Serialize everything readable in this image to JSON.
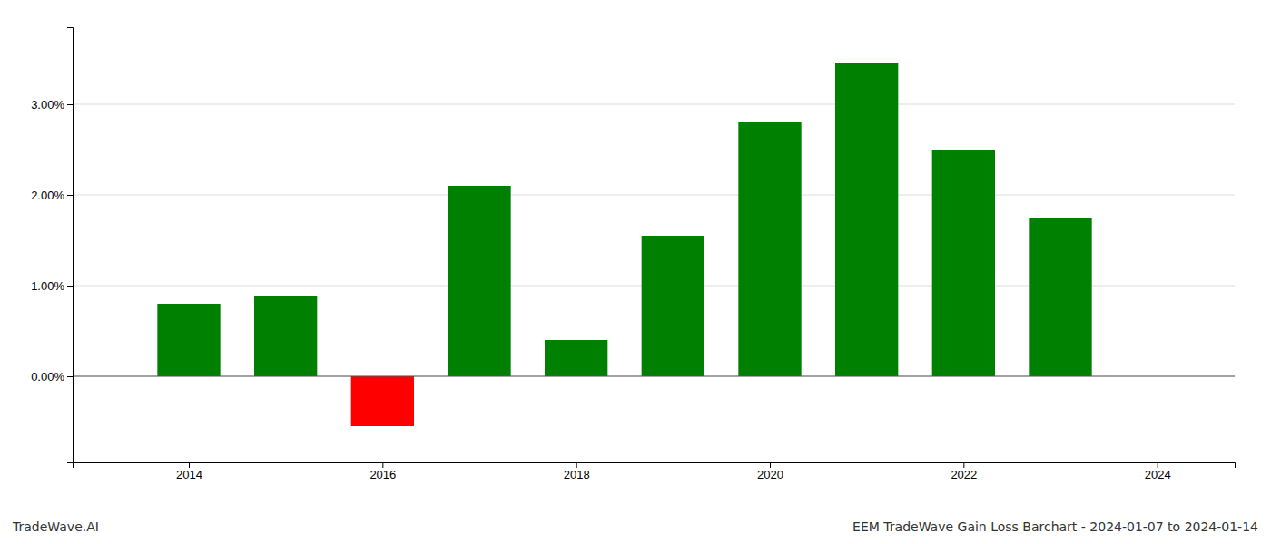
{
  "chart_data": {
    "type": "bar",
    "title": "EEM TradeWave Gain Loss Barchart - 2024-01-07 to 2024-01-14",
    "annotations": [
      "TradeWave.AI"
    ],
    "x": [
      2014,
      2015,
      2016,
      2017,
      2018,
      2019,
      2020,
      2021,
      2022,
      2023
    ],
    "values": [
      0.008,
      0.0088,
      -0.0055,
      0.021,
      0.004,
      0.0155,
      0.028,
      0.0345,
      0.025,
      0.0175
    ],
    "colors": [
      "#008000",
      "#008000",
      "#ff0000",
      "#008000",
      "#008000",
      "#008000",
      "#008000",
      "#008000",
      "#008000",
      "#008000"
    ],
    "xlim": [
      2012.8,
      2024.8
    ],
    "xticks": [
      2014,
      2016,
      2018,
      2020,
      2022,
      2024
    ],
    "ylim": [
      -0.0095,
      0.0385
    ],
    "yticks": [
      {
        "value": 0.0,
        "label": "0.00%"
      },
      {
        "value": 0.01,
        "label": "1.00%"
      },
      {
        "value": 0.02,
        "label": "2.00%"
      },
      {
        "value": 0.03,
        "label": "3.00%"
      }
    ],
    "grid": true
  }
}
